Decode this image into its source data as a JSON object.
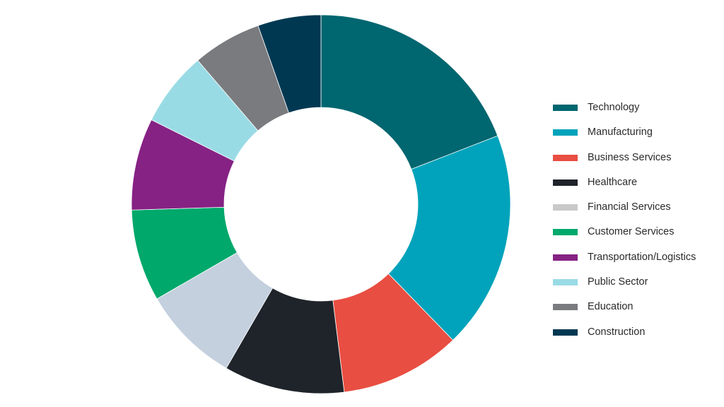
{
  "chart_data": {
    "type": "pie",
    "variant": "donut",
    "categories": [
      "Technology",
      "Manufacturing",
      "Business Services",
      "Healthcare",
      "Financial Services",
      "Customer Services",
      "Transportation/Logistics",
      "Public Sector",
      "Education",
      "Construction"
    ],
    "values": [
      19.5,
      19.0,
      10.5,
      10.5,
      8.5,
      8.0,
      8.0,
      6.5,
      6.0,
      5.5
    ],
    "value_unit": "percent of total (estimated from slice angles)",
    "colors": [
      "#00666f",
      "#00a3bb",
      "#e84e41",
      "#1f242a",
      "#c4d0de",
      "#00a86b",
      "#862284",
      "#99dbe5",
      "#797b7f",
      "#003852"
    ],
    "legend_colors": [
      "#00666f",
      "#00a3bb",
      "#e84e41",
      "#1f242a",
      "#c9c9c9",
      "#00a86b",
      "#862284",
      "#99dbe5",
      "#797b7f",
      "#003852"
    ],
    "start": "12 o'clock, clockwise",
    "legend_position": "right",
    "title": "",
    "xlabel": "",
    "ylabel": ""
  }
}
